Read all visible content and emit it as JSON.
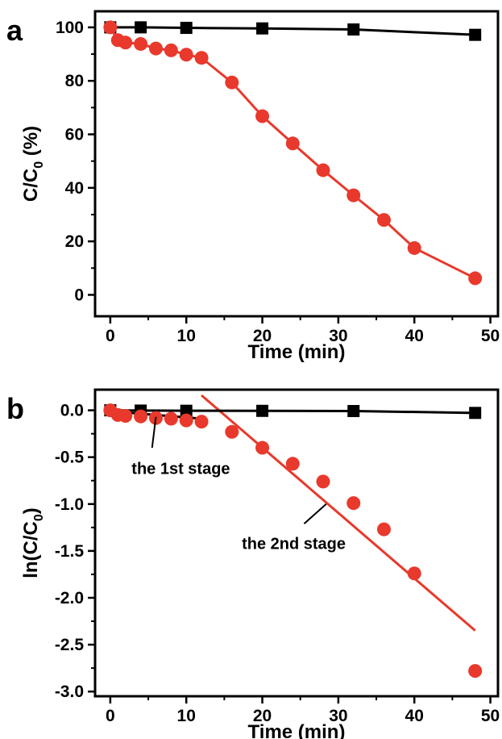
{
  "chart_data": [
    {
      "type": "line",
      "panel_label": "a",
      "xlabel": "Time (min)",
      "ylabel": {
        "prefix": "C/C",
        "sub": "0",
        "suffix": " (%)"
      },
      "xlim": [
        -2,
        51
      ],
      "ylim": [
        -8,
        106
      ],
      "xticks": [
        0,
        10,
        20,
        30,
        40,
        50
      ],
      "yticks": [
        0,
        20,
        40,
        60,
        80,
        100
      ],
      "series": [
        {
          "color": "#000000",
          "marker": "square",
          "line": "connect",
          "x": [
            0,
            4,
            10,
            20,
            32,
            48
          ],
          "y": [
            100,
            100,
            99.8,
            99.6,
            99.2,
            97.2
          ]
        },
        {
          "color": "#e8392c",
          "marker": "circle",
          "line": "connect",
          "x": [
            0,
            1,
            2,
            4,
            6,
            8,
            10,
            12,
            16,
            20,
            24,
            28,
            32,
            36,
            40,
            48
          ],
          "y": [
            100,
            95.2,
            94.3,
            93.8,
            92.1,
            91.4,
            89.8,
            88.6,
            79.4,
            66.8,
            56.6,
            46.6,
            37.2,
            28,
            17.5,
            6.2
          ]
        }
      ]
    },
    {
      "type": "scatter",
      "panel_label": "b",
      "xlabel": "Time (min)",
      "ylabel": {
        "prefix": "ln(C/C",
        "sub": "0",
        "suffix": ")"
      },
      "xlim": [
        -2,
        51
      ],
      "ylim": [
        -3.05,
        0.22
      ],
      "xticks": [
        0,
        10,
        20,
        30,
        40,
        50
      ],
      "yticks": [
        0.0,
        -0.5,
        -1.0,
        -1.5,
        -2.0,
        -2.5,
        -3.0
      ],
      "ytick_labels": [
        "0.0",
        "-0.5",
        "-1.0",
        "-1.5",
        "-2.0",
        "-2.5",
        "-3.0"
      ],
      "series": [
        {
          "color": "#000000",
          "marker": "square",
          "line": "connect",
          "x": [
            0,
            4,
            10,
            20,
            32,
            48
          ],
          "y": [
            0,
            -0.003,
            -0.005,
            -0.006,
            -0.008,
            -0.028
          ]
        },
        {
          "color": "#e8392c",
          "marker": "circle",
          "line": "none",
          "x": [
            0,
            1,
            2,
            4,
            6,
            8,
            10,
            12,
            16,
            20,
            24,
            28,
            32,
            36,
            40,
            48
          ],
          "y": [
            0,
            -0.05,
            -0.06,
            -0.065,
            -0.082,
            -0.09,
            -0.108,
            -0.121,
            -0.23,
            -0.4,
            -0.57,
            -0.76,
            -0.99,
            -1.27,
            -1.74,
            -2.78
          ]
        }
      ],
      "fits": [
        {
          "color": "#000000",
          "x": [
            0,
            12
          ],
          "y": [
            -0.01,
            -0.09
          ]
        },
        {
          "color": "#e8392c",
          "x": [
            12,
            48
          ],
          "y": [
            0.16,
            -2.35
          ]
        }
      ],
      "annotations": [
        {
          "text": "the 1st stage",
          "text_x": 2.8,
          "text_y": -0.62,
          "pointer": [
            [
              5.5,
              -0.4
            ],
            [
              6,
              -0.07
            ]
          ]
        },
        {
          "text": "the 2nd stage",
          "text_x": 17.3,
          "text_y": -1.42,
          "pointer": [
            [
              25.5,
              -1.21
            ],
            [
              28.4,
              -1.0
            ]
          ]
        }
      ]
    }
  ]
}
